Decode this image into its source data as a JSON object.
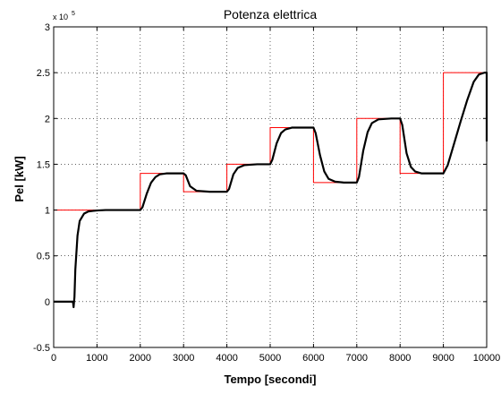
{
  "chart_data": {
    "type": "line",
    "title": "Potenza elettrica",
    "xlabel": "Tempo [secondi]",
    "ylabel": "Pel [kW]",
    "xlim": [
      0,
      10000
    ],
    "ylim": [
      -0.5,
      3
    ],
    "y_exponent_label": "x 10",
    "y_exponent_power": "5",
    "xticks": [
      0,
      1000,
      2000,
      3000,
      4000,
      5000,
      6000,
      7000,
      8000,
      9000,
      10000
    ],
    "xtick_labels": [
      "0",
      "1000",
      "2000",
      "3000",
      "4000",
      "5000",
      "6000",
      "7000",
      "8000",
      "9000",
      "10000"
    ],
    "yticks": [
      -0.5,
      0,
      0.5,
      1,
      1.5,
      2,
      2.5,
      3
    ],
    "ytick_labels": [
      "-0.5",
      "0",
      "0.5",
      "1",
      "1.5",
      "2",
      "2.5",
      "3"
    ],
    "grid": true,
    "legend": "none",
    "series": [
      {
        "color": "#ff0000",
        "style": "step",
        "x": [
          0,
          2000,
          2000,
          3000,
          3000,
          4000,
          4000,
          5000,
          5000,
          6000,
          6000,
          7000,
          7000,
          8000,
          8000,
          9000,
          9000,
          10000
        ],
        "y": [
          1.0,
          1.0,
          1.4,
          1.4,
          1.2,
          1.2,
          1.5,
          1.5,
          1.9,
          1.9,
          1.3,
          1.3,
          2.0,
          2.0,
          1.4,
          1.4,
          2.5,
          2.5
        ]
      },
      {
        "color": "#000000",
        "style": "line",
        "x": [
          0,
          440,
          450,
          460,
          480,
          500,
          550,
          600,
          700,
          800,
          900,
          1000,
          1200,
          1500,
          2000,
          2050,
          2150,
          2250,
          2350,
          2450,
          2600,
          3000,
          3050,
          3150,
          3300,
          3600,
          4000,
          4050,
          4150,
          4250,
          4400,
          4700,
          5000,
          5050,
          5150,
          5250,
          5350,
          5500,
          5800,
          6000,
          6050,
          6150,
          6250,
          6350,
          6500,
          6700,
          7000,
          7050,
          7150,
          7250,
          7350,
          7500,
          7800,
          8000,
          8050,
          8150,
          8250,
          8350,
          8500,
          8800,
          9000,
          9100,
          9250,
          9400,
          9550,
          9700,
          9820,
          9950,
          10000,
          10000
        ],
        "y": [
          0.0,
          0.0,
          -0.02,
          -0.06,
          0.05,
          0.35,
          0.72,
          0.88,
          0.96,
          0.985,
          0.99,
          0.995,
          1.0,
          1.0,
          1.0,
          1.03,
          1.18,
          1.3,
          1.36,
          1.39,
          1.4,
          1.4,
          1.38,
          1.26,
          1.21,
          1.2,
          1.2,
          1.23,
          1.39,
          1.46,
          1.49,
          1.5,
          1.5,
          1.55,
          1.73,
          1.84,
          1.88,
          1.9,
          1.9,
          1.9,
          1.84,
          1.6,
          1.42,
          1.34,
          1.31,
          1.3,
          1.3,
          1.36,
          1.65,
          1.85,
          1.95,
          1.99,
          2.0,
          2.0,
          1.93,
          1.62,
          1.47,
          1.42,
          1.4,
          1.4,
          1.4,
          1.49,
          1.73,
          1.97,
          2.2,
          2.4,
          2.48,
          2.5,
          2.5,
          1.75
        ]
      }
    ]
  }
}
